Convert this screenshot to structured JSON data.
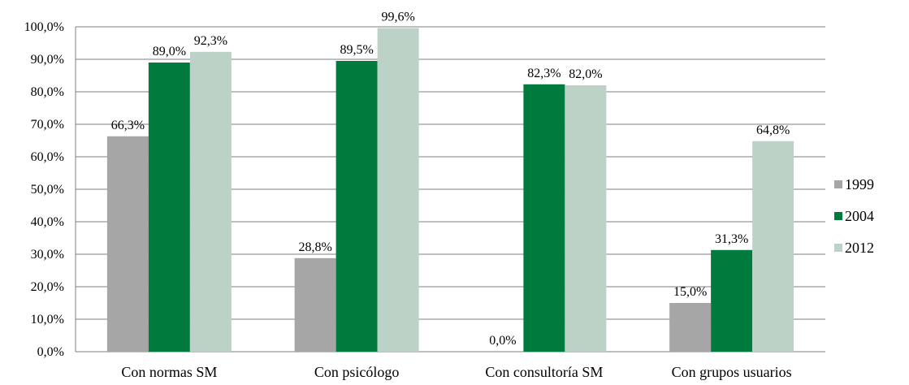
{
  "chart_data": {
    "type": "bar",
    "title": "",
    "xlabel": "",
    "ylabel": "",
    "ylim": [
      0,
      100
    ],
    "grid": true,
    "legend_position": "right",
    "yticks": [
      "0,0%",
      "10,0%",
      "20,0%",
      "30,0%",
      "40,0%",
      "50,0%",
      "60,0%",
      "70,0%",
      "80,0%",
      "90,0%",
      "100,0%"
    ],
    "categories": [
      "Con normas SM",
      "Con psicólogo",
      "Con consultoría SM",
      "Con grupos  usuarios"
    ],
    "series": [
      {
        "name": "1999",
        "color": "#a6a6a6",
        "values": [
          66.3,
          28.8,
          0.0,
          15.0
        ],
        "labels": [
          "66,3%",
          "28,8%",
          "0,0%",
          "15,0%"
        ]
      },
      {
        "name": "2004",
        "color": "#007a3d",
        "values": [
          89.0,
          89.5,
          82.3,
          31.3
        ],
        "labels": [
          "89,0%",
          "89,5%",
          "82,3%",
          "31,3%"
        ]
      },
      {
        "name": "2012",
        "color": "#bdd2c6",
        "values": [
          92.3,
          99.6,
          82.0,
          64.8
        ],
        "labels": [
          "92,3%",
          "99,6%",
          "82,0%",
          "64,8%"
        ]
      }
    ]
  }
}
